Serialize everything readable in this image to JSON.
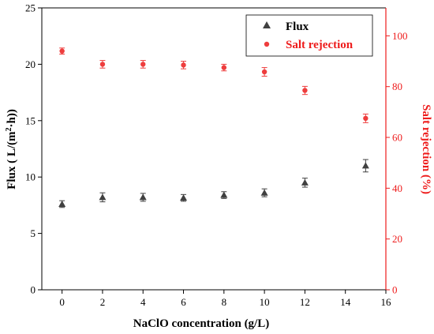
{
  "chart_data": {
    "type": "scatter",
    "xlabel": "NaClO concentration (g/L)",
    "ylabel_left_prefix": "Flux ( L/(m",
    "ylabel_left_sup": "2",
    "ylabel_left_suffix": "·h))",
    "ylabel_right": "Salt rejection (%)",
    "xlim": [
      -1,
      16
    ],
    "ylim_left": [
      0,
      25
    ],
    "ylim_right": [
      0,
      111
    ],
    "x_ticks": [
      0,
      2,
      4,
      6,
      8,
      10,
      12,
      14,
      16
    ],
    "y_left_ticks": [
      0,
      5,
      10,
      15,
      20,
      25
    ],
    "y_right_ticks": [
      0,
      20,
      40,
      60,
      80,
      100
    ],
    "left_color": "#000000",
    "right_color": "#ee1c1c",
    "grid": false,
    "legend_placement": "top-right",
    "series": [
      {
        "name": "Flux",
        "axis": "left",
        "marker": "triangle",
        "color": "#404040",
        "x": [
          0,
          2,
          4,
          6,
          8,
          10,
          12,
          15
        ],
        "y": [
          7.6,
          8.2,
          8.2,
          8.15,
          8.4,
          8.6,
          9.5,
          11.0
        ],
        "err": [
          0.3,
          0.4,
          0.35,
          0.3,
          0.3,
          0.35,
          0.4,
          0.55
        ]
      },
      {
        "name": "Salt rejection",
        "axis": "right",
        "marker": "circle",
        "color": "#ee3d3d",
        "x": [
          0,
          2,
          4,
          6,
          8,
          10,
          12,
          15
        ],
        "y": [
          94.0,
          88.8,
          88.8,
          88.5,
          87.5,
          85.8,
          78.5,
          67.5
        ],
        "err": [
          1.2,
          1.5,
          1.5,
          1.5,
          1.3,
          1.7,
          1.6,
          1.7
        ]
      }
    ]
  }
}
